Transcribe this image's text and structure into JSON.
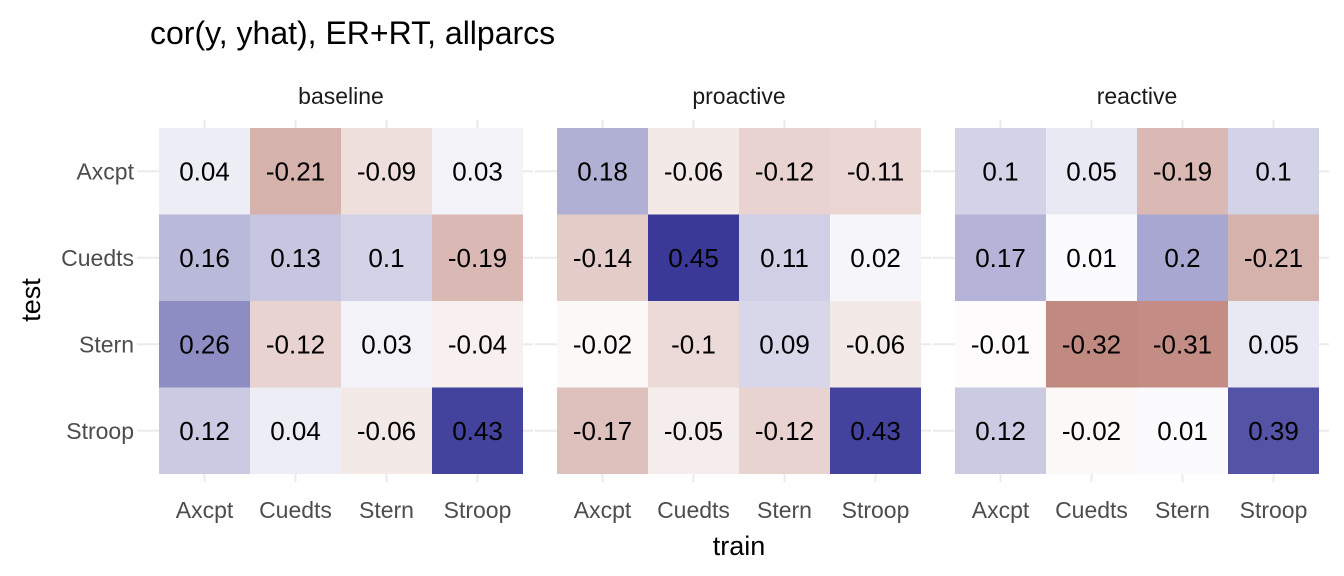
{
  "chart_data": {
    "type": "heatmap",
    "title": "cor(y, yhat), ER+RT, allparcs",
    "xlabel": "train",
    "ylabel": "test",
    "categories_x": [
      "Axcpt",
      "Cuedts",
      "Stern",
      "Stroop"
    ],
    "categories_y": [
      "Axcpt",
      "Cuedts",
      "Stern",
      "Stroop"
    ],
    "color_scale": {
      "low": "#a85a4e",
      "mid": "#ffffff",
      "high": "#3a3997",
      "limits": [
        -0.45,
        0.45
      ]
    },
    "panels": [
      {
        "name": "baseline",
        "values": [
          [
            0.04,
            -0.21,
            -0.09,
            0.03
          ],
          [
            0.16,
            0.13,
            0.1,
            -0.19
          ],
          [
            0.26,
            -0.12,
            0.03,
            -0.04
          ],
          [
            0.12,
            0.04,
            -0.06,
            0.43
          ]
        ]
      },
      {
        "name": "proactive",
        "values": [
          [
            0.18,
            -0.06,
            -0.12,
            -0.11
          ],
          [
            -0.14,
            0.45,
            0.11,
            0.02
          ],
          [
            -0.02,
            -0.1,
            0.09,
            -0.06
          ],
          [
            -0.17,
            -0.05,
            -0.12,
            0.43
          ]
        ]
      },
      {
        "name": "reactive",
        "values": [
          [
            0.1,
            0.05,
            -0.19,
            0.1
          ],
          [
            0.17,
            0.01,
            0.2,
            -0.21
          ],
          [
            -0.01,
            -0.32,
            -0.31,
            0.05
          ],
          [
            0.12,
            -0.02,
            0.01,
            0.39
          ]
        ]
      }
    ]
  }
}
